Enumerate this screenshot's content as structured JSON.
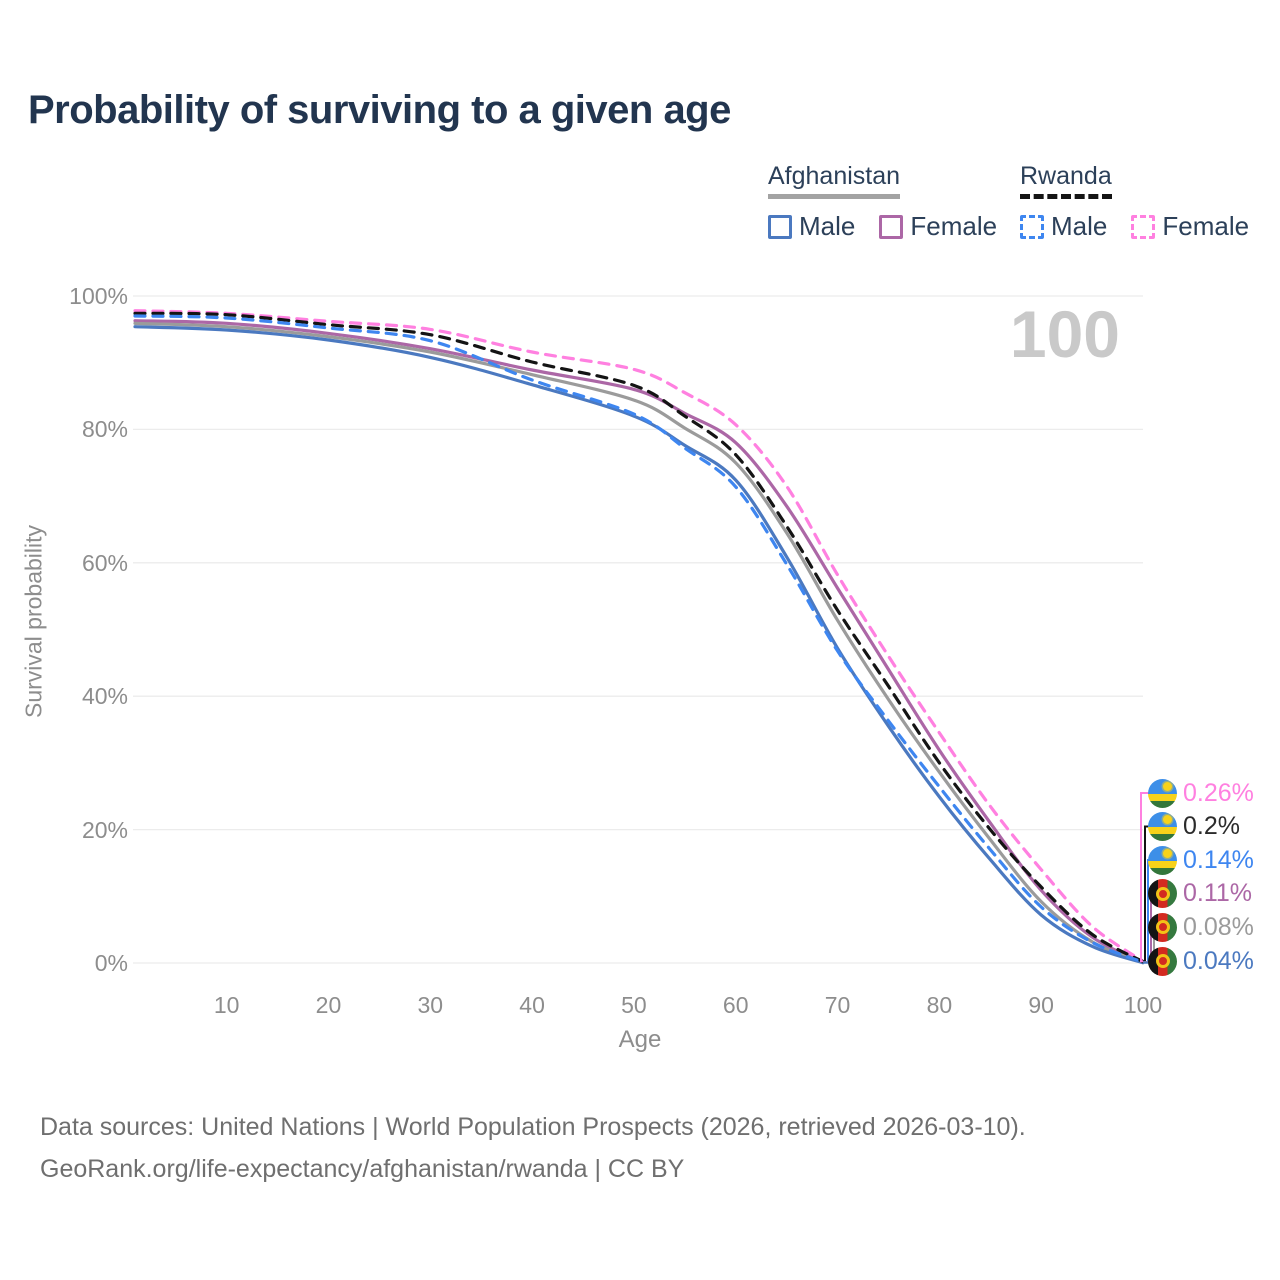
{
  "title": "Probability of surviving to a given age",
  "watermark": "100",
  "legend": {
    "groups": [
      {
        "country": "Afghanistan",
        "line_style": "solid",
        "line_color": "#a3a3a3",
        "items": [
          {
            "label": "Male",
            "color": "#4b79c0"
          },
          {
            "label": "Female",
            "color": "#ac67a6"
          }
        ]
      },
      {
        "country": "Rwanda",
        "line_style": "dashed",
        "line_color": "#141414",
        "items": [
          {
            "label": "Male",
            "color": "#3e86f0"
          },
          {
            "label": "Female",
            "color": "#ff80e0"
          }
        ]
      }
    ]
  },
  "chart_data": {
    "type": "line",
    "title": "Probability of surviving to a given age",
    "xlabel": "Age",
    "ylabel": "Survival probability",
    "xlim": [
      1,
      100
    ],
    "ylim": [
      0,
      100
    ],
    "grid": "horizontal",
    "x_ticks": [
      10,
      20,
      30,
      40,
      50,
      60,
      70,
      80,
      90,
      100
    ],
    "y_tick_values": [
      0,
      20,
      40,
      60,
      80,
      100
    ],
    "y_tick_labels": [
      "0%",
      "20%",
      "40%",
      "60%",
      "80%",
      "100%"
    ],
    "x": [
      1,
      10,
      20,
      30,
      40,
      50,
      55,
      60,
      65,
      70,
      75,
      80,
      85,
      90,
      95,
      100
    ],
    "series": [
      {
        "name": "Rwanda Female",
        "country": "Rwanda",
        "sex": "Female",
        "color": "#ff80e0",
        "dashed": true,
        "values": [
          97.8,
          97.4,
          96.2,
          95.0,
          91.6,
          89.0,
          85.5,
          80.7,
          71.5,
          58.2,
          46.0,
          34.5,
          23.5,
          14.0,
          5.5,
          0.26
        ]
      },
      {
        "name": "Rwanda Total",
        "country": "Rwanda",
        "sex": "Total",
        "color": "#141414",
        "dashed": true,
        "values": [
          97.4,
          97.2,
          95.7,
          94.2,
          90.1,
          86.6,
          82.0,
          76.2,
          65.5,
          52.9,
          41.5,
          30.0,
          20.0,
          11.4,
          4.3,
          0.2
        ]
      },
      {
        "name": "Rwanda Male",
        "country": "Rwanda",
        "sex": "Male",
        "color": "#3e86f0",
        "dashed": true,
        "values": [
          97.0,
          96.7,
          95.2,
          93.3,
          87.4,
          82.3,
          77.2,
          71.4,
          59.8,
          46.8,
          36.3,
          26.4,
          17.0,
          8.4,
          3.1,
          0.14
        ]
      },
      {
        "name": "Afghanistan Female",
        "country": "Afghanistan",
        "sex": "Female",
        "color": "#ac67a6",
        "dashed": false,
        "values": [
          96.3,
          95.9,
          94.4,
          92.1,
          88.9,
          86.0,
          82.4,
          78.0,
          68.5,
          56.2,
          44.0,
          31.9,
          21.0,
          10.9,
          3.9,
          0.11
        ]
      },
      {
        "name": "Afghanistan Total",
        "country": "Afghanistan",
        "sex": "Total",
        "color": "#9b9b9b",
        "dashed": false,
        "values": [
          95.9,
          95.4,
          93.9,
          91.6,
          88.2,
          84.4,
          80.2,
          75.0,
          64.5,
          51.4,
          39.5,
          28.6,
          18.5,
          9.2,
          3.2,
          0.08
        ]
      },
      {
        "name": "Afghanistan Male",
        "country": "Afghanistan",
        "sex": "Male",
        "color": "#4b79c0",
        "dashed": false,
        "values": [
          95.4,
          94.9,
          93.4,
          90.8,
          86.7,
          82.0,
          77.6,
          72.4,
          60.9,
          47.2,
          35.5,
          24.9,
          15.5,
          7.2,
          2.5,
          0.04
        ]
      }
    ],
    "end_labels": [
      {
        "value": "0.26%",
        "flag": "rwanda-flag-icon",
        "color": "#ff80e0"
      },
      {
        "value": "0.2%",
        "flag": "rwanda-flag-icon",
        "color": "#2b2b2b"
      },
      {
        "value": "0.14%",
        "flag": "rwanda-flag-icon",
        "color": "#3e86f0"
      },
      {
        "value": "0.11%",
        "flag": "afghanistan-flag-icon",
        "color": "#ac67a6"
      },
      {
        "value": "0.08%",
        "flag": "afghanistan-flag-icon",
        "color": "#9b9b9b"
      },
      {
        "value": "0.04%",
        "flag": "afghanistan-flag-icon",
        "color": "#4b79c0"
      }
    ]
  },
  "footer": {
    "line1": "Data sources: United Nations | World Population Prospects (2026, retrieved 2026-03-10).",
    "line2": "GeoRank.org/life-expectancy/afghanistan/rwanda | CC BY"
  }
}
